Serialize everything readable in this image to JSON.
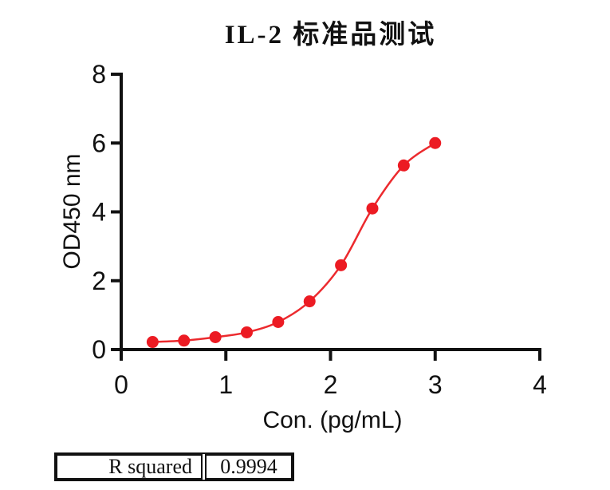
{
  "chart_data": {
    "type": "scatter",
    "title": "IL-2 标准品测试",
    "xlabel": "Con. (pg/mL)",
    "ylabel": "OD450 nm",
    "x": [
      0.3,
      0.6,
      0.9,
      1.2,
      1.5,
      1.8,
      2.1,
      2.4,
      2.7,
      3.0
    ],
    "y": [
      0.22,
      0.26,
      0.36,
      0.5,
      0.8,
      1.4,
      2.45,
      4.1,
      5.35,
      6.0
    ],
    "curve": "smooth sigmoidal (4PL) fit line through all points",
    "xlim": [
      0,
      4
    ],
    "ylim": [
      0,
      8
    ],
    "xticks": [
      0,
      1,
      2,
      3,
      4
    ],
    "yticks": [
      0,
      2,
      4,
      6,
      8
    ],
    "grid": false,
    "legend": "none",
    "marker_color": "#EC1B23",
    "line_color": "#EC2A2E",
    "axis_color": "#111111"
  },
  "stats_table": {
    "rows": [
      {
        "label": "R squared",
        "value": "0.9994"
      }
    ]
  }
}
